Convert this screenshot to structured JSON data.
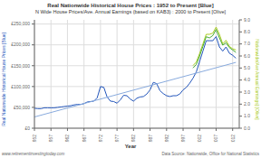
{
  "chart_data": {
    "type": "line",
    "title": "Real Nationwide Historical House Prices : 1952 to Present [Blue]",
    "subtitle": "N Wide House Prices/Ave. Annual Earnings (based on KAB3) : 2000 to Present [Olive]",
    "xlabel": "Year",
    "ylabel": "Real Nationwide Historical House Prices [Blue]",
    "y2label": "Nationwide/Ave Annual Earnings] [Olive]",
    "annotations": [
      "www.retirementinvestingtoday.com",
      "Data Source: Nationwide, Office for National Statistics"
    ],
    "grid": true,
    "xlim": [
      1952,
      2014
    ],
    "xticks": [
      1952,
      1957,
      1962,
      1967,
      1972,
      1977,
      1982,
      1987,
      1992,
      1997,
      2002,
      2007,
      2012
    ],
    "ylim": [
      0,
      260000
    ],
    "yticks": [
      {
        "value": 0,
        "label": "£0"
      },
      {
        "value": 50000,
        "label": "£50,000"
      },
      {
        "value": 100000,
        "label": "£100,000"
      },
      {
        "value": 150000,
        "label": "£150,000"
      },
      {
        "value": 200000,
        "label": "£200,000"
      },
      {
        "value": 250000,
        "label": "£250,000"
      }
    ],
    "y2lim": [
      0.0,
      9.0
    ],
    "y2ticks": [
      {
        "value": 0,
        "label": "0.0"
      },
      {
        "value": 1,
        "label": "1.0"
      },
      {
        "value": 2,
        "label": "2.0"
      },
      {
        "value": 3,
        "label": "3.0"
      },
      {
        "value": 4,
        "label": "4.0"
      },
      {
        "value": 5,
        "label": "5.0"
      },
      {
        "value": 6,
        "label": "6.0"
      },
      {
        "value": 7,
        "label": "7.0"
      },
      {
        "value": 8,
        "label": "8.0"
      },
      {
        "value": 9,
        "label": "9.0"
      }
    ],
    "series": [
      {
        "color": "#2255bb",
        "x": [
          1952,
          1953,
          1954,
          1955,
          1956,
          1957,
          1958,
          1959,
          1960,
          1961,
          1962,
          1963,
          1964,
          1965,
          1966,
          1967,
          1968,
          1969,
          1970,
          1971,
          1972,
          1973,
          1974,
          1975,
          1976,
          1977,
          1978,
          1979,
          1980,
          1981,
          1982,
          1983,
          1984,
          1985,
          1986,
          1987,
          1988,
          1989,
          1990,
          1991,
          1992,
          1993,
          1994,
          1995,
          1996,
          1997,
          1998,
          1999,
          2000,
          2001,
          2002,
          2003,
          2004,
          2005,
          2006,
          2007,
          2008,
          2009,
          2010,
          2011,
          2012,
          2013
        ],
        "values": [
          48000,
          47000,
          47000,
          49000,
          49000,
          49000,
          49000,
          50000,
          51000,
          52000,
          53000,
          54000,
          56000,
          57000,
          57000,
          59000,
          63000,
          64000,
          65000,
          73000,
          100000,
          98000,
          75000,
          65000,
          64000,
          60000,
          68000,
          79000,
          78000,
          70000,
          65000,
          72000,
          75000,
          76000,
          82000,
          92000,
          110000,
          107000,
          90000,
          83000,
          78000,
          76000,
          78000,
          78000,
          82000,
          92000,
          98000,
          108000,
          120000,
          135000,
          160000,
          185000,
          210000,
          210000,
          210000,
          220000,
          195000,
          185000,
          195000,
          180000,
          175000,
          168000
        ]
      },
      {
        "color": "#88aadd",
        "x": [
          1952,
          2013
        ],
        "values": [
          27000,
          158000
        ]
      },
      {
        "color": "#aacc22",
        "axis": "y2",
        "x": [
          2000,
          2001,
          2002,
          2003,
          2004,
          2005,
          2006,
          2007,
          2008,
          2009,
          2010,
          2011,
          2012,
          2013
        ],
        "values": [
          5.2,
          5.5,
          6.2,
          7.0,
          7.8,
          7.8,
          7.9,
          8.4,
          7.8,
          7.0,
          7.3,
          6.8,
          6.6,
          6.5
        ]
      },
      {
        "color": "#44aa33",
        "axis": "y2",
        "x": [
          2000,
          2001,
          2002,
          2003,
          2004,
          2005,
          2006,
          2007,
          2008,
          2009,
          2010,
          2011,
          2012,
          2013
        ],
        "values": [
          5.0,
          5.3,
          6.0,
          6.8,
          7.6,
          7.5,
          7.7,
          8.2,
          7.5,
          6.9,
          7.1,
          6.7,
          6.5,
          6.3
        ]
      }
    ]
  }
}
